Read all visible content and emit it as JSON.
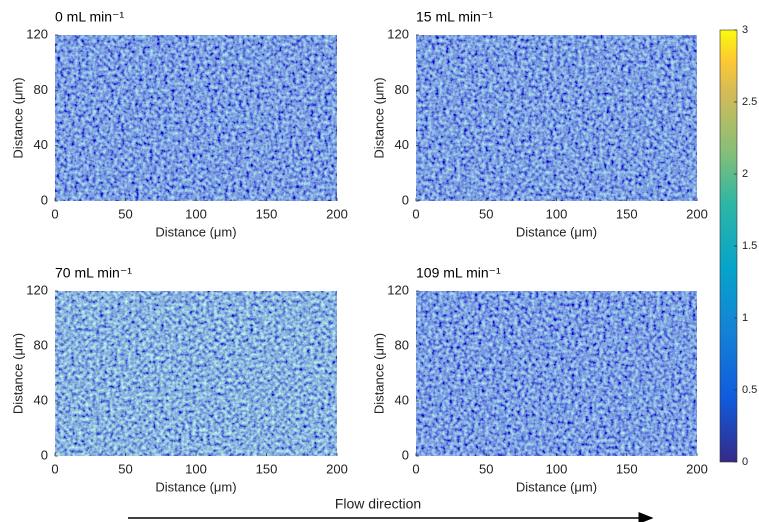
{
  "chart_data": [
    {
      "type": "heatmap",
      "title": "0 mL min⁻¹",
      "xlabel": "Distance (μm)",
      "ylabel": "Distance (μm)",
      "xlim": [
        0,
        200
      ],
      "ylim": [
        0,
        120
      ],
      "xticks": [
        0,
        50,
        100,
        150,
        200
      ],
      "yticks": [
        0,
        40,
        80,
        120
      ]
    },
    {
      "type": "heatmap",
      "title": "15 mL min⁻¹",
      "xlabel": "Distance (μm)",
      "ylabel": "Distance (μm)",
      "xlim": [
        0,
        200
      ],
      "ylim": [
        0,
        120
      ],
      "xticks": [
        0,
        50,
        100,
        150,
        200
      ],
      "yticks": [
        0,
        40,
        80,
        120
      ]
    },
    {
      "type": "heatmap",
      "title": "70 mL min⁻¹",
      "xlabel": "Distance (μm)",
      "ylabel": "Distance (μm)",
      "xlim": [
        0,
        200
      ],
      "ylim": [
        0,
        120
      ],
      "xticks": [
        0,
        50,
        100,
        150,
        200
      ],
      "yticks": [
        0,
        40,
        80,
        120
      ]
    },
    {
      "type": "heatmap",
      "title": "109 mL min⁻¹",
      "xlabel": "Distance (μm)",
      "ylabel": "Distance (μm)",
      "xlim": [
        0,
        200
      ],
      "ylim": [
        0,
        120
      ],
      "xticks": [
        0,
        50,
        100,
        150,
        200
      ],
      "yticks": [
        0,
        40,
        80,
        120
      ]
    },
    {
      "type": "colorbar",
      "ylim": [
        0,
        3
      ],
      "yticks": [
        0,
        0.5,
        1,
        1.5,
        2,
        2.5,
        3
      ]
    }
  ],
  "annotation": "Flow direction"
}
